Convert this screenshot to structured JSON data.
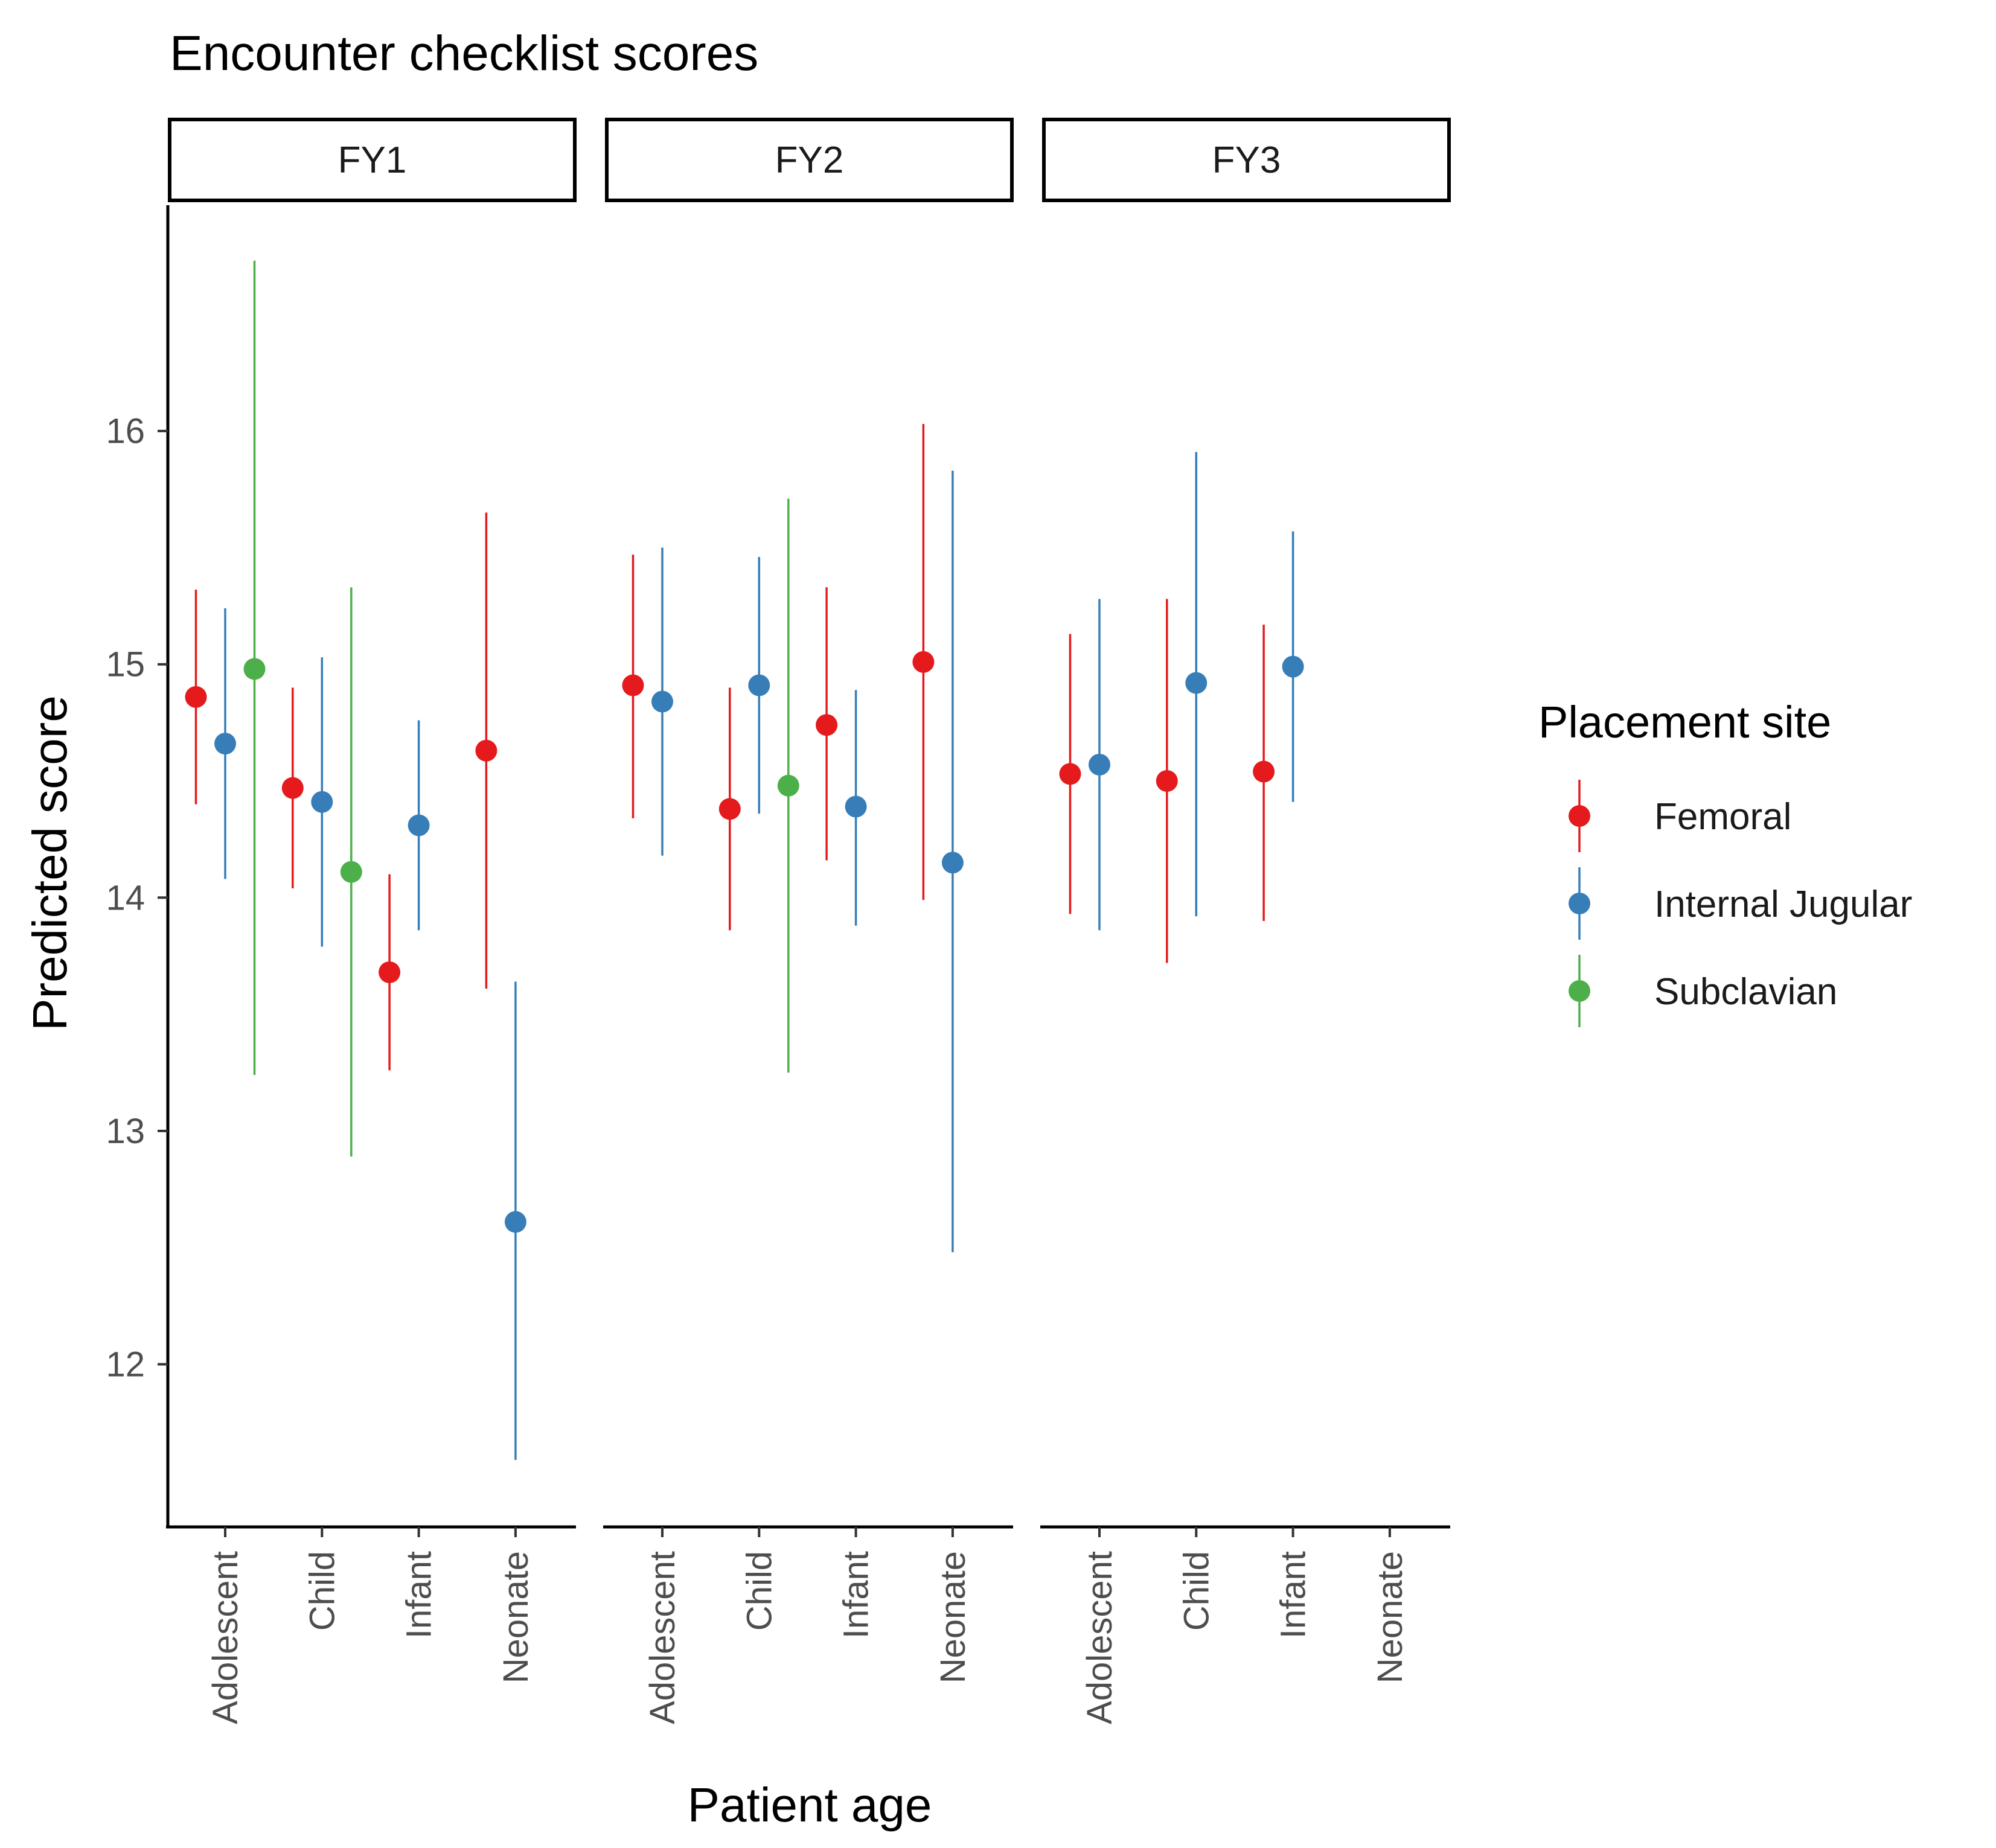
{
  "chart_data": {
    "type": "scatter",
    "title": "Encounter checklist scores",
    "xlabel": "Patient age",
    "ylabel": "Predicted score",
    "facets": [
      "FY1",
      "FY2",
      "FY3"
    ],
    "categories": [
      "Adolescent",
      "Child",
      "Infant",
      "Neonate"
    ],
    "ylim": [
      11.35,
      17.0
    ],
    "yticks": [
      "12",
      "13",
      "14",
      "15",
      "16"
    ],
    "grid": false,
    "legend": {
      "title": "Placement site",
      "position": "right",
      "entries": [
        {
          "name": "Femoral",
          "color": "#E41A1C"
        },
        {
          "name": "Internal Jugular",
          "color": "#377EB8"
        },
        {
          "name": "Subclavian",
          "color": "#4DAF4A"
        }
      ]
    },
    "series": [
      {
        "name": "Femoral",
        "color": "#E41A1C",
        "points": [
          {
            "facet": "FY1",
            "category": "Adolescent",
            "y": 14.86,
            "lower": 14.4,
            "upper": 15.32
          },
          {
            "facet": "FY1",
            "category": "Child",
            "y": 14.47,
            "lower": 14.04,
            "upper": 14.9
          },
          {
            "facet": "FY1",
            "category": "Infant",
            "y": 13.68,
            "lower": 13.26,
            "upper": 14.1
          },
          {
            "facet": "FY1",
            "category": "Neonate",
            "y": 14.63,
            "lower": 13.61,
            "upper": 15.65
          },
          {
            "facet": "FY2",
            "category": "Adolescent",
            "y": 14.91,
            "lower": 14.34,
            "upper": 15.47
          },
          {
            "facet": "FY2",
            "category": "Child",
            "y": 14.38,
            "lower": 13.86,
            "upper": 14.9
          },
          {
            "facet": "FY2",
            "category": "Infant",
            "y": 14.74,
            "lower": 14.16,
            "upper": 15.33
          },
          {
            "facet": "FY2",
            "category": "Neonate",
            "y": 15.01,
            "lower": 13.99,
            "upper": 16.03
          },
          {
            "facet": "FY3",
            "category": "Adolescent",
            "y": 14.53,
            "lower": 13.93,
            "upper": 15.13
          },
          {
            "facet": "FY3",
            "category": "Child",
            "y": 14.5,
            "lower": 13.72,
            "upper": 15.28
          },
          {
            "facet": "FY3",
            "category": "Infant",
            "y": 14.54,
            "lower": 13.9,
            "upper": 15.17
          }
        ]
      },
      {
        "name": "Internal Jugular",
        "color": "#377EB8",
        "points": [
          {
            "facet": "FY1",
            "category": "Adolescent",
            "y": 14.66,
            "lower": 14.08,
            "upper": 15.24
          },
          {
            "facet": "FY1",
            "category": "Child",
            "y": 14.41,
            "lower": 13.79,
            "upper": 15.03
          },
          {
            "facet": "FY1",
            "category": "Infant",
            "y": 14.31,
            "lower": 13.86,
            "upper": 14.76
          },
          {
            "facet": "FY1",
            "category": "Neonate",
            "y": 12.61,
            "lower": 11.59,
            "upper": 13.64
          },
          {
            "facet": "FY2",
            "category": "Adolescent",
            "y": 14.84,
            "lower": 14.18,
            "upper": 15.5
          },
          {
            "facet": "FY2",
            "category": "Child",
            "y": 14.91,
            "lower": 14.36,
            "upper": 15.46
          },
          {
            "facet": "FY2",
            "category": "Infant",
            "y": 14.39,
            "lower": 13.88,
            "upper": 14.89
          },
          {
            "facet": "FY2",
            "category": "Neonate",
            "y": 14.15,
            "lower": 12.48,
            "upper": 15.83
          },
          {
            "facet": "FY3",
            "category": "Adolescent",
            "y": 14.57,
            "lower": 13.86,
            "upper": 15.28
          },
          {
            "facet": "FY3",
            "category": "Child",
            "y": 14.92,
            "lower": 13.92,
            "upper": 15.91
          },
          {
            "facet": "FY3",
            "category": "Infant",
            "y": 14.99,
            "lower": 14.41,
            "upper": 15.57
          }
        ]
      },
      {
        "name": "Subclavian",
        "color": "#4DAF4A",
        "points": [
          {
            "facet": "FY1",
            "category": "Adolescent",
            "y": 14.98,
            "lower": 13.24,
            "upper": 16.73
          },
          {
            "facet": "FY1",
            "category": "Child",
            "y": 14.11,
            "lower": 12.89,
            "upper": 15.33
          },
          {
            "facet": "FY2",
            "category": "Child",
            "y": 14.48,
            "lower": 13.25,
            "upper": 15.71
          }
        ]
      }
    ]
  }
}
